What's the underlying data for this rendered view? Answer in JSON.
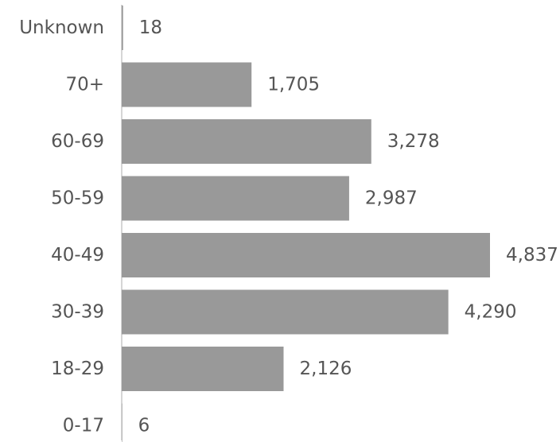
{
  "chart_data": {
    "type": "bar",
    "orientation": "horizontal",
    "categories": [
      "Unknown",
      "70+",
      "60-69",
      "50-59",
      "40-49",
      "30-39",
      "18-29",
      "0-17"
    ],
    "values": [
      18,
      1705,
      3278,
      2987,
      4837,
      4290,
      2126,
      6
    ],
    "value_labels": [
      "18",
      "1,705",
      "3,278",
      "2,987",
      "4,837",
      "4,290",
      "2,126",
      "6"
    ],
    "bar_color": "#999999",
    "axis_line_color": "#c8c8c8",
    "text_color": "#555555",
    "grid": false,
    "legend": "none",
    "xlim": [
      0,
      4837
    ]
  }
}
